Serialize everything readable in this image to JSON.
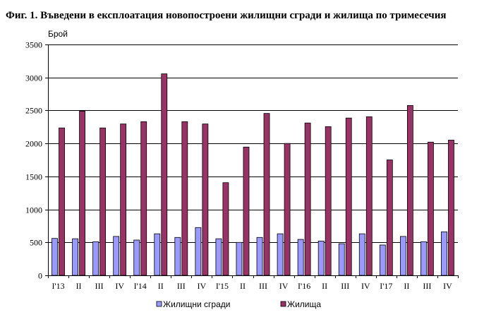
{
  "chart_data": {
    "type": "bar",
    "title": "Фиг. 1. Въведени в експлоатация новопостроени жилищни сгради и жилища по тримесечия",
    "ylabel": "Брой",
    "xlabel": "",
    "ylim": [
      0,
      3500
    ],
    "yticks": [
      0,
      500,
      1000,
      1500,
      2000,
      2500,
      3000,
      3500
    ],
    "grid": true,
    "legend_position": "bottom",
    "categories": [
      "I'13",
      "II",
      "III",
      "IV",
      "I'14",
      "II",
      "III",
      "IV",
      "I'15",
      "II",
      "III",
      "IV",
      "I'16",
      "II",
      "III",
      "IV",
      "I'17",
      "II",
      "III",
      "IV"
    ],
    "series": [
      {
        "name": "Жилищни сгради",
        "color": "#9999ff",
        "values": [
          560,
          555,
          510,
          590,
          535,
          630,
          575,
          725,
          555,
          500,
          575,
          630,
          545,
          520,
          480,
          630,
          460,
          590,
          510,
          660
        ]
      },
      {
        "name": "Жилища",
        "color": "#993366",
        "values": [
          2235,
          2490,
          2235,
          2295,
          2330,
          3055,
          2330,
          2295,
          1405,
          1945,
          2455,
          2000,
          2310,
          2255,
          2385,
          2405,
          1750,
          2575,
          2020,
          2050
        ]
      }
    ]
  }
}
